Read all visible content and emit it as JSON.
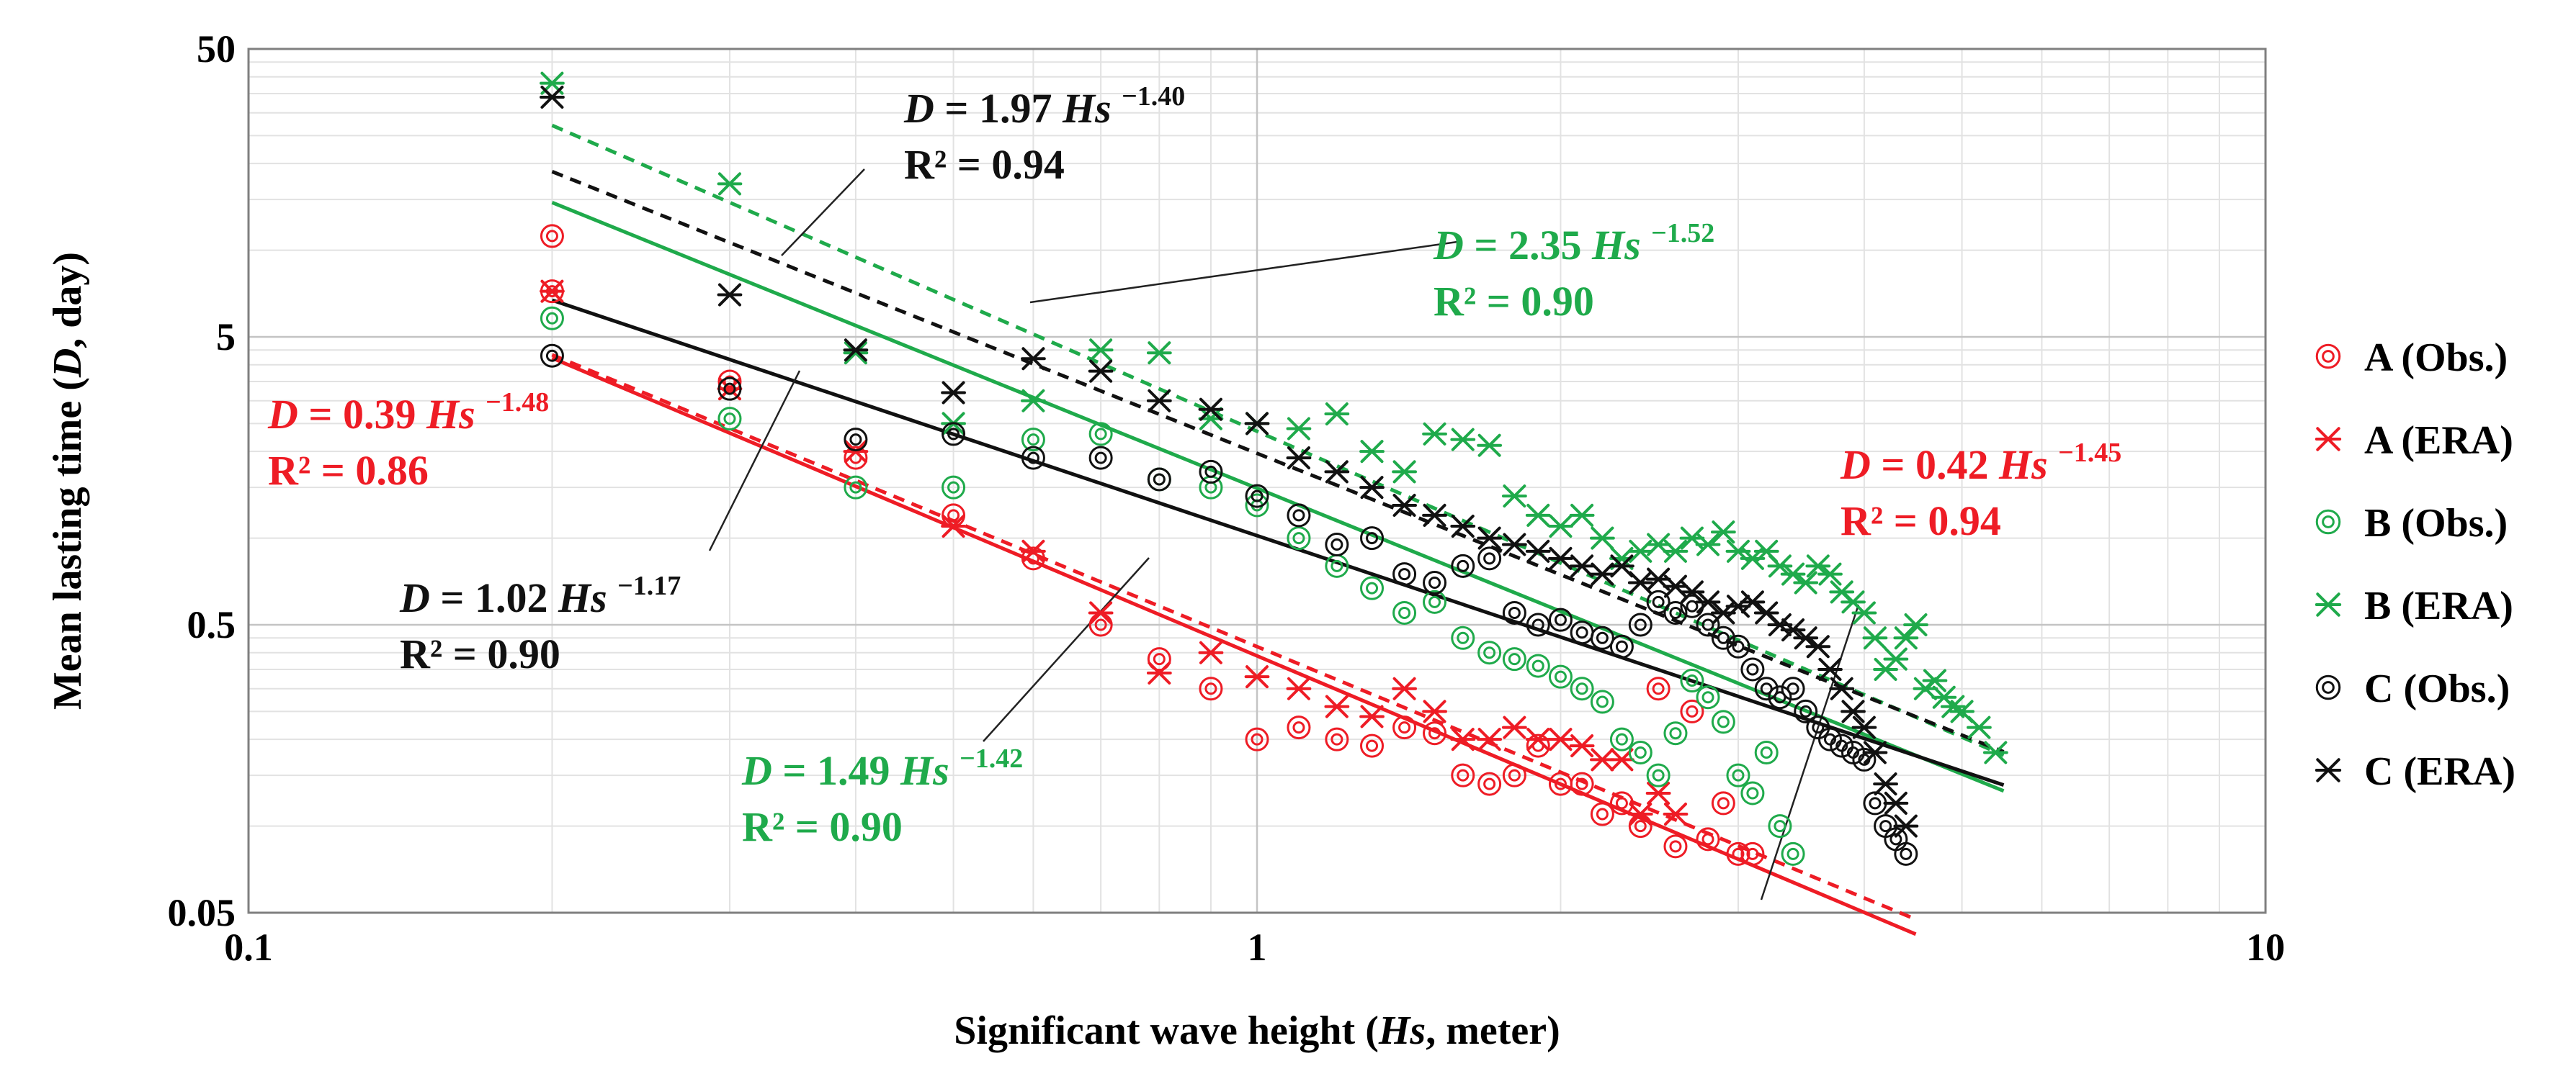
{
  "chart_data": {
    "type": "scatter",
    "scale": {
      "x": "log",
      "y": "log"
    },
    "xlim": [
      0.1,
      10
    ],
    "ylim": [
      0.05,
      50
    ],
    "grid": true,
    "legend": "right",
    "xlabel": {
      "before": "Significant wave height (",
      "var": "Hs",
      "after": ", meter)"
    },
    "ylabel": {
      "before": "Mean lasting time (",
      "var": "D",
      "after": ", day)"
    },
    "x_ticks": [
      {
        "v": 0.1,
        "label": "0.1"
      },
      {
        "v": 1,
        "label": "1"
      },
      {
        "v": 10,
        "label": "10"
      }
    ],
    "y_ticks": [
      {
        "v": 0.05,
        "label": "0.05"
      },
      {
        "v": 0.5,
        "label": "0.5"
      },
      {
        "v": 5,
        "label": "5"
      },
      {
        "v": 50,
        "label": "50"
      }
    ],
    "colors": {
      "red": "#ee1c25",
      "green": "#1faa4b",
      "black": "#111111"
    },
    "series": [
      {
        "id": "a-obs",
        "name": "A (Obs.)",
        "marker": "circle",
        "color": "#ee1c25",
        "points": [
          [
            0.2,
            11.2
          ],
          [
            0.2,
            7.2
          ],
          [
            0.3,
            3.5
          ],
          [
            0.4,
            1.9
          ],
          [
            0.5,
            1.2
          ],
          [
            0.6,
            0.85
          ],
          [
            0.7,
            0.5
          ],
          [
            0.8,
            0.38
          ],
          [
            0.9,
            0.3
          ],
          [
            1.0,
            0.2
          ],
          [
            1.1,
            0.22
          ],
          [
            1.2,
            0.2
          ],
          [
            1.3,
            0.19
          ],
          [
            1.4,
            0.22
          ],
          [
            1.5,
            0.21
          ],
          [
            1.6,
            0.15
          ],
          [
            1.7,
            0.14
          ],
          [
            1.8,
            0.15
          ],
          [
            1.9,
            0.19
          ],
          [
            2.0,
            0.14
          ],
          [
            2.1,
            0.14
          ],
          [
            2.2,
            0.11
          ],
          [
            2.3,
            0.12
          ],
          [
            2.4,
            0.1
          ],
          [
            2.5,
            0.3
          ],
          [
            2.6,
            0.085
          ],
          [
            2.7,
            0.25
          ],
          [
            2.8,
            0.09
          ],
          [
            2.9,
            0.12
          ],
          [
            3.0,
            0.08
          ],
          [
            3.1,
            0.08
          ]
        ]
      },
      {
        "id": "a-era",
        "name": "A (ERA)",
        "marker": "x",
        "color": "#ee1c25",
        "points": [
          [
            0.2,
            7.2
          ],
          [
            0.3,
            3.3
          ],
          [
            0.4,
            2.0
          ],
          [
            0.5,
            1.1
          ],
          [
            0.6,
            0.9
          ],
          [
            0.7,
            0.55
          ],
          [
            0.8,
            0.34
          ],
          [
            0.9,
            0.4
          ],
          [
            1.0,
            0.33
          ],
          [
            1.1,
            0.3
          ],
          [
            1.2,
            0.26
          ],
          [
            1.3,
            0.24
          ],
          [
            1.4,
            0.3
          ],
          [
            1.5,
            0.25
          ],
          [
            1.6,
            0.2
          ],
          [
            1.7,
            0.2
          ],
          [
            1.8,
            0.22
          ],
          [
            1.9,
            0.2
          ],
          [
            2.0,
            0.2
          ],
          [
            2.1,
            0.19
          ],
          [
            2.2,
            0.17
          ],
          [
            2.3,
            0.17
          ],
          [
            2.4,
            0.11
          ],
          [
            2.5,
            0.13
          ],
          [
            2.6,
            0.11
          ]
        ]
      },
      {
        "id": "b-obs",
        "name": "B (Obs.)",
        "marker": "circle",
        "color": "#1faa4b",
        "points": [
          [
            0.2,
            5.8
          ],
          [
            0.3,
            2.6
          ],
          [
            0.4,
            1.5
          ],
          [
            0.5,
            1.5
          ],
          [
            0.6,
            2.2
          ],
          [
            0.7,
            2.3
          ],
          [
            0.8,
            1.6
          ],
          [
            0.9,
            1.5
          ],
          [
            1.0,
            1.3
          ],
          [
            1.1,
            1.0
          ],
          [
            1.2,
            0.8
          ],
          [
            1.3,
            0.67
          ],
          [
            1.4,
            0.55
          ],
          [
            1.5,
            0.6
          ],
          [
            1.6,
            0.45
          ],
          [
            1.7,
            0.4
          ],
          [
            1.8,
            0.38
          ],
          [
            1.9,
            0.36
          ],
          [
            2.0,
            0.33
          ],
          [
            2.1,
            0.3
          ],
          [
            2.2,
            0.27
          ],
          [
            2.3,
            0.2
          ],
          [
            2.4,
            0.18
          ],
          [
            2.5,
            0.15
          ],
          [
            2.6,
            0.21
          ],
          [
            2.7,
            0.32
          ],
          [
            2.8,
            0.28
          ],
          [
            2.9,
            0.23
          ],
          [
            3.0,
            0.15
          ],
          [
            3.1,
            0.13
          ],
          [
            3.2,
            0.18
          ],
          [
            3.3,
            0.1
          ],
          [
            3.4,
            0.08
          ]
        ]
      },
      {
        "id": "b-era",
        "name": "B (ERA)",
        "marker": "x",
        "color": "#1faa4b",
        "points": [
          [
            0.2,
            38
          ],
          [
            0.3,
            17
          ],
          [
            0.4,
            4.4
          ],
          [
            0.5,
            2.5
          ],
          [
            0.6,
            3.0
          ],
          [
            0.7,
            4.5
          ],
          [
            0.8,
            4.4
          ],
          [
            0.9,
            2.6
          ],
          [
            1.0,
            2.5
          ],
          [
            1.1,
            2.4
          ],
          [
            1.2,
            2.7
          ],
          [
            1.3,
            2.0
          ],
          [
            1.4,
            1.7
          ],
          [
            1.5,
            2.3
          ],
          [
            1.6,
            2.2
          ],
          [
            1.7,
            2.1
          ],
          [
            1.8,
            1.4
          ],
          [
            1.9,
            1.2
          ],
          [
            2.0,
            1.1
          ],
          [
            2.1,
            1.2
          ],
          [
            2.2,
            1.0
          ],
          [
            2.3,
            0.85
          ],
          [
            2.4,
            0.9
          ],
          [
            2.5,
            0.95
          ],
          [
            2.6,
            0.9
          ],
          [
            2.7,
            1.0
          ],
          [
            2.8,
            0.95
          ],
          [
            2.9,
            1.05
          ],
          [
            3.0,
            0.9
          ],
          [
            3.1,
            0.85
          ],
          [
            3.2,
            0.9
          ],
          [
            3.3,
            0.8
          ],
          [
            3.4,
            0.75
          ],
          [
            3.5,
            0.7
          ],
          [
            3.6,
            0.8
          ],
          [
            3.7,
            0.75
          ],
          [
            3.8,
            0.65
          ],
          [
            3.9,
            0.6
          ],
          [
            4.0,
            0.55
          ],
          [
            4.1,
            0.45
          ],
          [
            4.2,
            0.35
          ],
          [
            4.3,
            0.38
          ],
          [
            4.4,
            0.45
          ],
          [
            4.5,
            0.5
          ],
          [
            4.6,
            0.3
          ],
          [
            4.7,
            0.32
          ],
          [
            4.8,
            0.28
          ],
          [
            4.9,
            0.26
          ],
          [
            5.0,
            0.25
          ],
          [
            5.2,
            0.22
          ],
          [
            5.4,
            0.18
          ]
        ]
      },
      {
        "id": "c-obs",
        "name": "C (Obs.)",
        "marker": "circle",
        "color": "#111111",
        "points": [
          [
            0.2,
            4.3
          ],
          [
            0.3,
            3.3
          ],
          [
            0.4,
            2.2
          ],
          [
            0.5,
            2.3
          ],
          [
            0.6,
            1.9
          ],
          [
            0.7,
            1.9
          ],
          [
            0.8,
            1.6
          ],
          [
            0.9,
            1.7
          ],
          [
            1.0,
            1.4
          ],
          [
            1.1,
            1.2
          ],
          [
            1.2,
            0.95
          ],
          [
            1.3,
            1.0
          ],
          [
            1.4,
            0.75
          ],
          [
            1.5,
            0.7
          ],
          [
            1.6,
            0.8
          ],
          [
            1.7,
            0.85
          ],
          [
            1.8,
            0.55
          ],
          [
            1.9,
            0.5
          ],
          [
            2.0,
            0.52
          ],
          [
            2.1,
            0.47
          ],
          [
            2.2,
            0.45
          ],
          [
            2.3,
            0.42
          ],
          [
            2.4,
            0.5
          ],
          [
            2.5,
            0.6
          ],
          [
            2.6,
            0.55
          ],
          [
            2.7,
            0.58
          ],
          [
            2.8,
            0.5
          ],
          [
            2.9,
            0.45
          ],
          [
            3.0,
            0.42
          ],
          [
            3.1,
            0.35
          ],
          [
            3.2,
            0.3
          ],
          [
            3.3,
            0.28
          ],
          [
            3.4,
            0.3
          ],
          [
            3.5,
            0.25
          ],
          [
            3.6,
            0.22
          ],
          [
            3.7,
            0.2
          ],
          [
            3.8,
            0.19
          ],
          [
            3.9,
            0.18
          ],
          [
            4.0,
            0.17
          ],
          [
            4.1,
            0.12
          ],
          [
            4.2,
            0.1
          ],
          [
            4.3,
            0.09
          ],
          [
            4.4,
            0.08
          ]
        ]
      },
      {
        "id": "c-era",
        "name": "C (ERA)",
        "marker": "x",
        "color": "#111111",
        "points": [
          [
            0.2,
            34
          ],
          [
            0.3,
            7.0
          ],
          [
            0.4,
            4.5
          ],
          [
            0.5,
            3.2
          ],
          [
            0.6,
            4.2
          ],
          [
            0.7,
            3.8
          ],
          [
            0.8,
            3.0
          ],
          [
            0.9,
            2.8
          ],
          [
            1.0,
            2.5
          ],
          [
            1.1,
            1.9
          ],
          [
            1.2,
            1.7
          ],
          [
            1.3,
            1.5
          ],
          [
            1.4,
            1.3
          ],
          [
            1.5,
            1.2
          ],
          [
            1.6,
            1.1
          ],
          [
            1.7,
            1.0
          ],
          [
            1.8,
            0.95
          ],
          [
            1.9,
            0.9
          ],
          [
            2.0,
            0.85
          ],
          [
            2.1,
            0.8
          ],
          [
            2.2,
            0.75
          ],
          [
            2.3,
            0.8
          ],
          [
            2.4,
            0.7
          ],
          [
            2.5,
            0.72
          ],
          [
            2.6,
            0.68
          ],
          [
            2.7,
            0.65
          ],
          [
            2.8,
            0.6
          ],
          [
            2.9,
            0.55
          ],
          [
            3.0,
            0.58
          ],
          [
            3.1,
            0.6
          ],
          [
            3.2,
            0.55
          ],
          [
            3.3,
            0.5
          ],
          [
            3.4,
            0.48
          ],
          [
            3.5,
            0.45
          ],
          [
            3.6,
            0.42
          ],
          [
            3.7,
            0.35
          ],
          [
            3.8,
            0.3
          ],
          [
            3.9,
            0.25
          ],
          [
            4.0,
            0.22
          ],
          [
            4.1,
            0.18
          ],
          [
            4.2,
            0.14
          ],
          [
            4.3,
            0.12
          ],
          [
            4.4,
            0.1
          ]
        ]
      }
    ],
    "trendlines": [
      {
        "id": "trend-a-obs",
        "series": "A (Obs.)",
        "style": "solid",
        "color": "#ee1c25",
        "a": 0.39,
        "b": -1.48,
        "x_range": [
          0.2,
          4.5
        ]
      },
      {
        "id": "trend-a-era",
        "series": "A (ERA)",
        "style": "dashed",
        "color": "#ee1c25",
        "a": 0.42,
        "b": -1.45,
        "x_range": [
          0.2,
          4.5
        ]
      },
      {
        "id": "trend-b-obs",
        "series": "B (Obs.)",
        "style": "solid",
        "color": "#1faa4b",
        "a": 1.49,
        "b": -1.42,
        "x_range": [
          0.2,
          5.5
        ]
      },
      {
        "id": "trend-b-era",
        "series": "B (ERA)",
        "style": "dashed",
        "color": "#1faa4b",
        "a": 2.35,
        "b": -1.52,
        "x_range": [
          0.2,
          5.5
        ]
      },
      {
        "id": "trend-c-obs",
        "series": "C (Obs.)",
        "style": "solid",
        "color": "#111111",
        "a": 1.02,
        "b": -1.17,
        "x_range": [
          0.2,
          5.5
        ]
      },
      {
        "id": "trend-c-era",
        "series": "C (ERA)",
        "style": "dashed",
        "color": "#111111",
        "a": 1.97,
        "b": -1.4,
        "x_range": [
          0.2,
          5.5
        ]
      }
    ],
    "annotations": [
      {
        "id": "eq-c-era",
        "color": "#111111",
        "coef": "1.97",
        "exp": "−1.40",
        "r2": "0.94"
      },
      {
        "id": "eq-b-era",
        "color": "#1faa4b",
        "coef": "2.35",
        "exp": "−1.52",
        "r2": "0.90"
      },
      {
        "id": "eq-a-obs",
        "color": "#ee1c25",
        "coef": "0.39",
        "exp": "−1.48",
        "r2": "0.86"
      },
      {
        "id": "eq-a-era",
        "color": "#ee1c25",
        "coef": "0.42",
        "exp": "−1.45",
        "r2": "0.94"
      },
      {
        "id": "eq-c-obs",
        "color": "#111111",
        "coef": "1.02",
        "exp": "−1.17",
        "r2": "0.90"
      },
      {
        "id": "eq-b-obs",
        "color": "#1faa4b",
        "coef": "1.49",
        "exp": "−1.42",
        "r2": "0.90"
      }
    ],
    "equation_labels": {
      "d": "D",
      "eq": " = ",
      "hs": "Hs",
      "r2": "R² = "
    }
  }
}
